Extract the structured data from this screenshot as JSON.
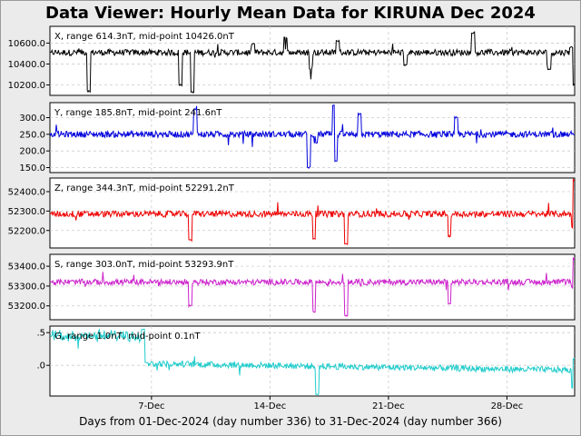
{
  "window": {
    "title": "Data Viewer:  Hourly Mean Data for KIRUNA Dec 2024",
    "xlabel": "Days from 01-Dec-2024 (day number 336) to 31-Dec-2024 (day number 366)"
  },
  "chart_data": {
    "type": "line",
    "grid": true,
    "x_ticks": [
      {
        "day": 7,
        "label": "7-Dec"
      },
      {
        "day": 14,
        "label": "14-Dec"
      },
      {
        "day": 21,
        "label": "21-Dec"
      },
      {
        "day": 28,
        "label": "28-Dec"
      }
    ],
    "xlim": [
      1,
      32
    ],
    "panels": [
      {
        "name": "X",
        "label": "X, range 614.3nT, mid-point 10426.0nT",
        "color": "#000000",
        "ylim": [
          10100,
          10760
        ],
        "y_ticks": [
          {
            "value": 10200,
            "label": "10200.0"
          },
          {
            "value": 10400,
            "label": "10400.0"
          },
          {
            "value": 10600,
            "label": "10600.0"
          }
        ],
        "baseline": 10510,
        "values_x": [
          1,
          3.3,
          8.7,
          9.4,
          13,
          14.9,
          16.4,
          18,
          22,
          26,
          30.5,
          31.8,
          32
        ],
        "values_y": [
          10510,
          10140,
          10200,
          10130,
          10590,
          10650,
          10350,
          10620,
          10390,
          10700,
          10350,
          10560,
          10200
        ]
      },
      {
        "name": "Y",
        "label": "Y, range 185.8nT, mid-point 241.6nT",
        "color": "#0000dd",
        "ylim": [
          135,
          345
        ],
        "y_ticks": [
          {
            "value": 150,
            "label": "150.0"
          },
          {
            "value": 200,
            "label": "200.0"
          },
          {
            "value": 250,
            "label": "250.0"
          },
          {
            "value": 300,
            "label": "300.0"
          }
        ],
        "baseline": 250,
        "values_x": [
          1,
          9.6,
          16.3,
          16.7,
          17.8,
          17.9,
          19.3,
          25,
          32
        ],
        "values_y": [
          250,
          325,
          150,
          225,
          336,
          170,
          310,
          300,
          250
        ]
      },
      {
        "name": "Z",
        "label": "Z, range 344.3nT, mid-point 52291.2nT",
        "color": "#ee0000",
        "ylim": [
          52110,
          52470
        ],
        "y_ticks": [
          {
            "value": 52200,
            "label": "52200.0"
          },
          {
            "value": 52300,
            "label": "52300.0"
          },
          {
            "value": 52400,
            "label": "52400.0"
          }
        ],
        "baseline": 52285,
        "values_x": [
          1,
          9.3,
          16.6,
          18.5,
          24.6,
          31.9,
          32
        ],
        "values_y": [
          52285,
          52150,
          52160,
          52130,
          52170,
          52215,
          52460
        ]
      },
      {
        "name": "S",
        "label": "S, range 303.0nT, mid-point 53293.9nT",
        "color": "#cc22cc",
        "ylim": [
          53130,
          53460
        ],
        "y_ticks": [
          {
            "value": 53200,
            "label": "53200.0"
          },
          {
            "value": 53300,
            "label": "53300.0"
          },
          {
            "value": 53400,
            "label": "53400.0"
          }
        ],
        "baseline": 53320,
        "values_x": [
          1,
          9.3,
          16.6,
          18.5,
          24.6,
          31.9,
          32
        ],
        "values_y": [
          53320,
          53200,
          53170,
          53150,
          53210,
          53290,
          53440
        ]
      },
      {
        "name": "G",
        "label": "G, range 1.0nT, mid-point 0.1nT",
        "color": "#22cccc",
        "ylim": [
          -0.47,
          0.6
        ],
        "y_ticks": [
          {
            "value": 0.0,
            "label": ".0"
          },
          {
            "value": 0.5,
            "label": ".5"
          }
        ],
        "baseline": 0.0,
        "values_x": [
          1,
          6.5,
          6.7,
          16.8,
          31.9,
          32
        ],
        "values_y": [
          0.45,
          0.55,
          0.05,
          -0.45,
          -0.35,
          0.1
        ]
      }
    ]
  }
}
